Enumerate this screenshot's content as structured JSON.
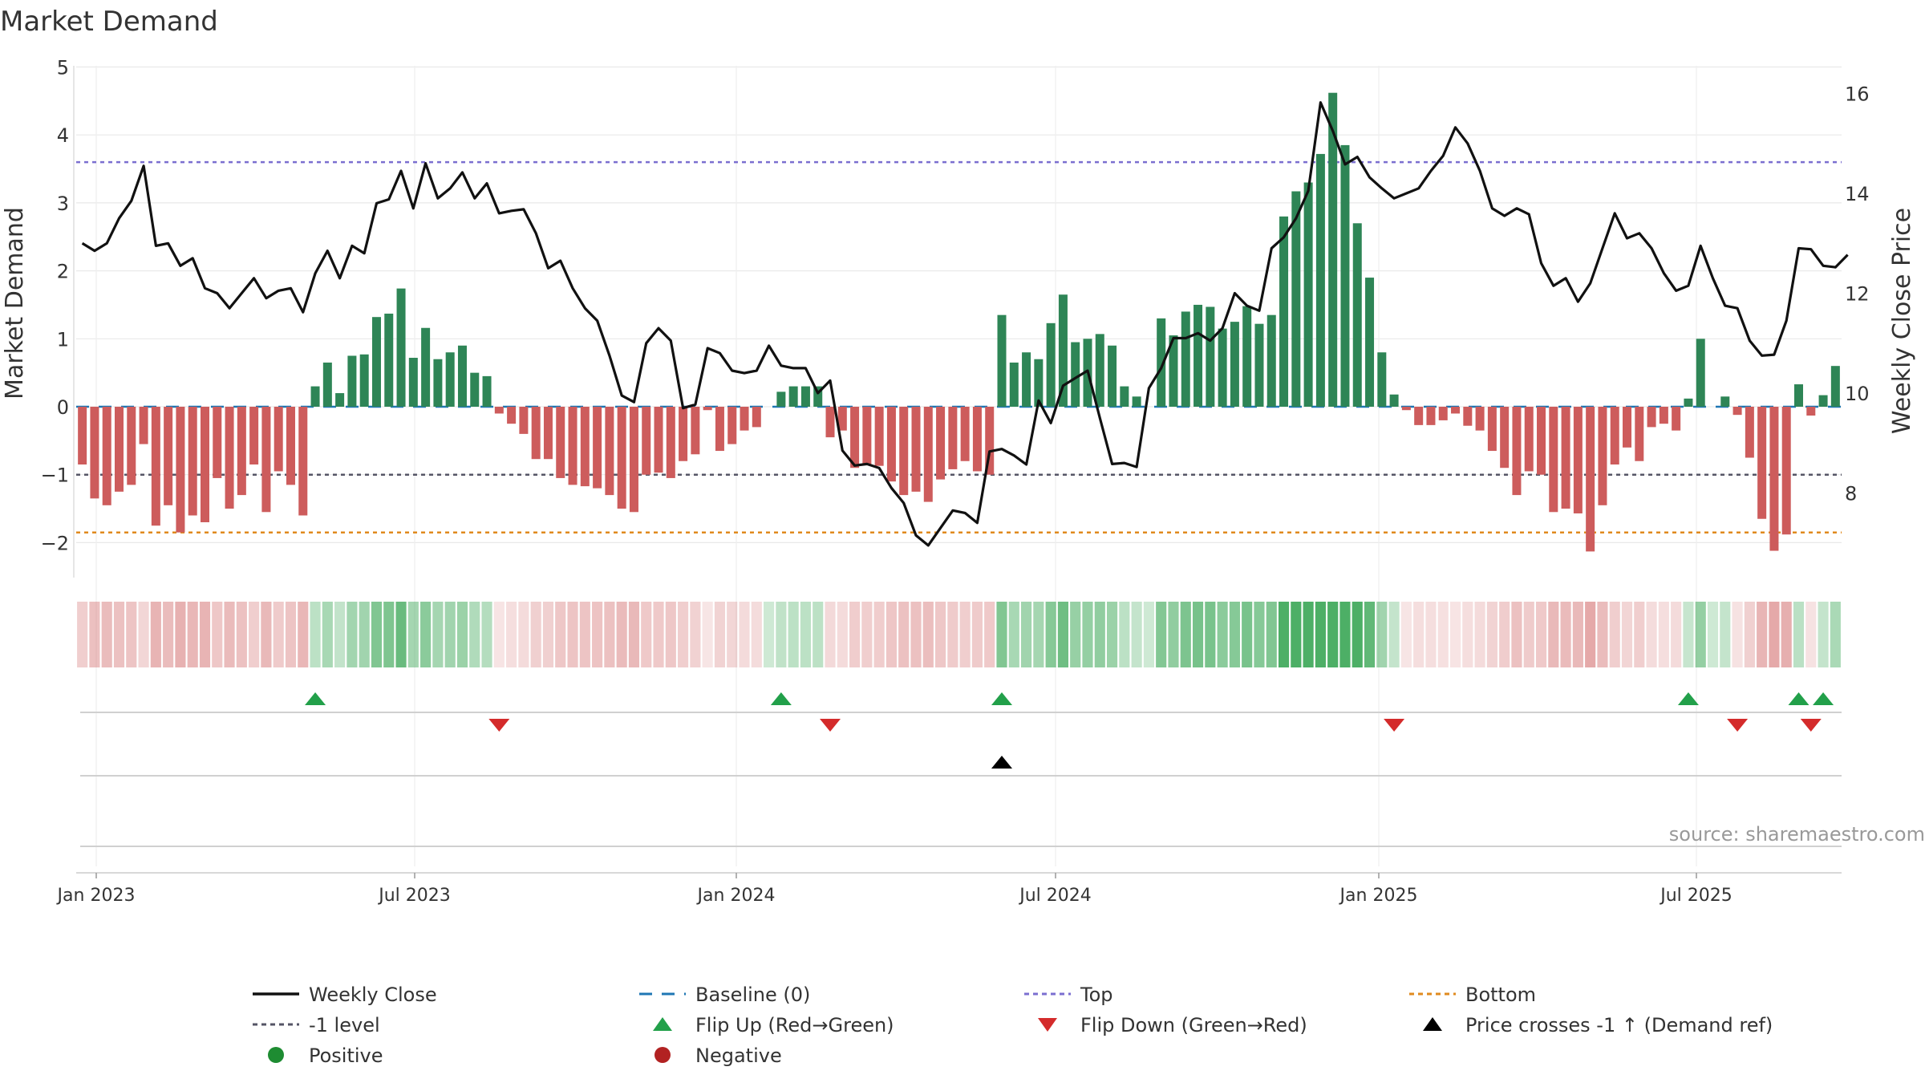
{
  "chart_data": {
    "type": "bar",
    "title": "Market Demand",
    "ylabel": "Market Demand",
    "y2label": "Weekly Close Price",
    "ylim": [
      -2.5,
      5
    ],
    "y2lim": [
      6.4,
      16.6
    ],
    "yticks": [
      "5",
      "4",
      "3",
      "2",
      "1",
      "0",
      "−1",
      "−2"
    ],
    "y2ticks": [
      "16",
      "14",
      "12",
      "10",
      "8"
    ],
    "xticks": [
      "Jan 2023",
      "Jul 2023",
      "Jan 2024",
      "Jul 2024",
      "Jan 2025",
      "Jul 2025"
    ],
    "levels": {
      "top": 3.6,
      "minus1": -1,
      "bottom": -1.85,
      "baseline": 0
    },
    "colors": {
      "positive": "#2e8556",
      "negative": "#cd5c5c",
      "price": "#111111",
      "top": "#7b6fd0",
      "minus1": "#555566",
      "bottom": "#e08a1e",
      "baseline": "#1f77b4",
      "flip_up": "#22a04a",
      "flip_down": "#d42b2b",
      "cross": "#000000"
    },
    "demand": [
      -0.85,
      -1.35,
      -1.45,
      -1.25,
      -1.15,
      -0.55,
      -1.75,
      -1.45,
      -1.85,
      -1.6,
      -1.7,
      -1.05,
      -1.5,
      -1.3,
      -0.85,
      -1.55,
      -0.95,
      -1.15,
      -1.6,
      0.3,
      0.65,
      0.2,
      0.75,
      0.77,
      1.32,
      1.37,
      1.74,
      0.72,
      1.16,
      0.7,
      0.8,
      0.9,
      0.5,
      0.45,
      -0.1,
      -0.25,
      -0.4,
      -0.77,
      -0.77,
      -1.05,
      -1.15,
      -1.17,
      -1.2,
      -1.3,
      -1.5,
      -1.55,
      -1.0,
      -0.97,
      -1.05,
      -0.8,
      -0.7,
      -0.05,
      -0.65,
      -0.55,
      -0.35,
      -0.3,
      0.0,
      0.22,
      0.3,
      0.3,
      0.3,
      -0.45,
      -0.35,
      -0.9,
      -0.85,
      -0.87,
      -1.1,
      -1.3,
      -1.25,
      -1.4,
      -1.07,
      -0.92,
      -0.8,
      -0.95,
      -1.0,
      1.35,
      0.65,
      0.8,
      0.7,
      1.23,
      1.65,
      0.95,
      1.0,
      1.07,
      0.9,
      0.3,
      0.15,
      0.0,
      1.3,
      1.05,
      1.4,
      1.5,
      1.47,
      1.15,
      1.25,
      1.48,
      1.22,
      1.35,
      2.8,
      3.17,
      3.3,
      3.72,
      4.62,
      3.85,
      2.7,
      1.9,
      0.8,
      0.18,
      -0.05,
      -0.27,
      -0.27,
      -0.2,
      -0.1,
      -0.28,
      -0.35,
      -0.65,
      -0.9,
      -1.3,
      -0.95,
      -1.0,
      -1.55,
      -1.5,
      -1.57,
      -2.13,
      -1.45,
      -0.85,
      -0.6,
      -0.8,
      -0.3,
      -0.25,
      -0.35,
      0.12,
      1.0,
      0.0,
      0.15,
      -0.12,
      -0.75,
      -1.65,
      -2.12,
      -1.88,
      0.33,
      -0.13,
      0.17,
      0.6
    ],
    "price": [
      13.0,
      12.85,
      13.0,
      13.5,
      13.85,
      14.55,
      12.95,
      13.0,
      12.55,
      12.7,
      12.1,
      12.0,
      11.7,
      12.0,
      12.3,
      11.9,
      12.05,
      12.1,
      11.62,
      12.4,
      12.85,
      12.3,
      12.95,
      12.8,
      13.8,
      13.88,
      14.45,
      13.7,
      14.6,
      13.9,
      14.1,
      14.42,
      13.9,
      14.2,
      13.6,
      13.65,
      13.68,
      13.2,
      12.5,
      12.65,
      12.1,
      11.7,
      11.45,
      10.75,
      9.95,
      9.82,
      11.0,
      11.3,
      11.05,
      9.7,
      9.77,
      10.9,
      10.8,
      10.45,
      10.4,
      10.45,
      10.95,
      10.55,
      10.5,
      10.5,
      10.0,
      10.25,
      8.85,
      8.55,
      8.58,
      8.5,
      8.1,
      7.8,
      7.15,
      6.95,
      7.3,
      7.65,
      7.6,
      7.4,
      8.83,
      8.88,
      8.75,
      8.57,
      9.85,
      9.4,
      10.15,
      10.3,
      10.45,
      9.5,
      8.58,
      8.6,
      8.52,
      10.1,
      10.5,
      11.1,
      11.1,
      11.2,
      11.05,
      11.3,
      12.0,
      11.75,
      11.65,
      12.9,
      13.12,
      13.5,
      14.05,
      15.82,
      15.25,
      14.58,
      14.73,
      14.32,
      14.1,
      13.9,
      14.0,
      14.1,
      14.45,
      14.75,
      15.32,
      15.0,
      14.45,
      13.7,
      13.55,
      13.7,
      13.58,
      12.6,
      12.15,
      12.3,
      11.83,
      12.2,
      12.9,
      13.6,
      13.1,
      13.2,
      12.9,
      12.4,
      12.05,
      12.15,
      12.95,
      12.3,
      11.75,
      11.7,
      11.05,
      10.75,
      10.77,
      11.45,
      12.9,
      12.88,
      12.55,
      12.52,
      12.77
    ],
    "flip_up_weeks": [
      19,
      57,
      75,
      131,
      140,
      142
    ],
    "flip_down_weeks": [
      34,
      61,
      107,
      135,
      141
    ],
    "cross_weeks": [
      75
    ],
    "legend": [
      {
        "key": "close",
        "label": "Weekly Close"
      },
      {
        "key": "baseline",
        "label": "Baseline (0)"
      },
      {
        "key": "top",
        "label": "Top"
      },
      {
        "key": "bottom",
        "label": "Bottom"
      },
      {
        "key": "minus1",
        "label": "-1 level"
      },
      {
        "key": "flip_up",
        "label": "Flip Up (Red→Green)"
      },
      {
        "key": "flip_down",
        "label": "Flip Down (Green→Red)"
      },
      {
        "key": "cross",
        "label": "Price crosses -1 ↑ (Demand ref)"
      },
      {
        "key": "positive",
        "label": "Positive"
      },
      {
        "key": "negative",
        "label": "Negative"
      }
    ],
    "source": "source: sharemaestro.com"
  }
}
